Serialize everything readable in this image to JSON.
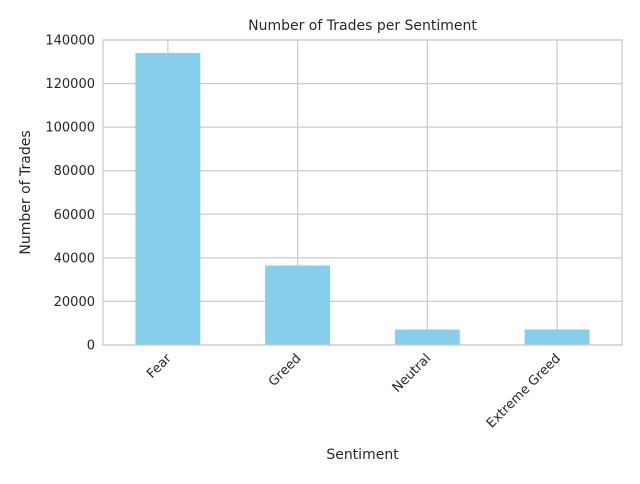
{
  "chart_data": {
    "type": "bar",
    "title": "Number of Trades per Sentiment",
    "xlabel": "Sentiment",
    "ylabel": "Number of Trades",
    "categories": [
      "Fear",
      "Greed",
      "Neutral",
      "Extreme Greed"
    ],
    "values": [
      134000,
      36500,
      7100,
      7100
    ],
    "ylim": [
      0,
      140000
    ],
    "yticks": [
      "0",
      "20000",
      "40000",
      "60000",
      "80000",
      "100000",
      "120000",
      "140000"
    ],
    "grid": true,
    "bar_color": "#87CEEB",
    "grid_color": "#cccccc"
  }
}
